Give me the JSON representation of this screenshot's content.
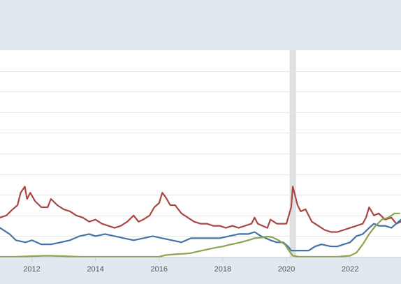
{
  "chart_data": {
    "type": "line",
    "xlim": [
      2011.0,
      2023.6
    ],
    "ylim": [
      0,
      100
    ],
    "grid": true,
    "recession_shading": [
      [
        2020.1,
        2020.3
      ]
    ],
    "x_ticks": [
      {
        "value": 2012,
        "label": "2012"
      },
      {
        "value": 2014,
        "label": "2014"
      },
      {
        "value": 2016,
        "label": "2016"
      },
      {
        "value": 2018,
        "label": "2018"
      },
      {
        "value": 2020,
        "label": "2020"
      },
      {
        "value": 2022,
        "label": "2022"
      }
    ],
    "y_gridlines": [
      0,
      10,
      20,
      30,
      40,
      50,
      60,
      70,
      80,
      90
    ],
    "series": [
      {
        "color": "#aa4643",
        "points": [
          [
            2011.0,
            19
          ],
          [
            2011.2,
            20
          ],
          [
            2011.4,
            23
          ],
          [
            2011.55,
            25
          ],
          [
            2011.65,
            31
          ],
          [
            2011.78,
            34
          ],
          [
            2011.85,
            28
          ],
          [
            2011.95,
            31
          ],
          [
            2012.1,
            27
          ],
          [
            2012.3,
            24
          ],
          [
            2012.5,
            24
          ],
          [
            2012.6,
            28
          ],
          [
            2012.8,
            25
          ],
          [
            2013.0,
            23
          ],
          [
            2013.2,
            22
          ],
          [
            2013.4,
            20
          ],
          [
            2013.6,
            19
          ],
          [
            2013.8,
            17
          ],
          [
            2014.0,
            18
          ],
          [
            2014.2,
            16
          ],
          [
            2014.4,
            15
          ],
          [
            2014.6,
            14
          ],
          [
            2014.8,
            15
          ],
          [
            2015.0,
            17
          ],
          [
            2015.2,
            20
          ],
          [
            2015.35,
            17
          ],
          [
            2015.5,
            18
          ],
          [
            2015.7,
            20
          ],
          [
            2015.85,
            24
          ],
          [
            2016.0,
            26
          ],
          [
            2016.1,
            31
          ],
          [
            2016.2,
            29
          ],
          [
            2016.35,
            25
          ],
          [
            2016.5,
            25
          ],
          [
            2016.7,
            21
          ],
          [
            2016.9,
            19
          ],
          [
            2017.1,
            17
          ],
          [
            2017.3,
            16
          ],
          [
            2017.5,
            16
          ],
          [
            2017.7,
            15
          ],
          [
            2017.9,
            15
          ],
          [
            2018.1,
            14
          ],
          [
            2018.3,
            15
          ],
          [
            2018.5,
            14
          ],
          [
            2018.7,
            15
          ],
          [
            2018.9,
            16
          ],
          [
            2019.0,
            19
          ],
          [
            2019.1,
            16
          ],
          [
            2019.25,
            15
          ],
          [
            2019.4,
            14
          ],
          [
            2019.5,
            18
          ],
          [
            2019.7,
            16
          ],
          [
            2019.9,
            16
          ],
          [
            2020.0,
            16
          ],
          [
            2020.15,
            24
          ],
          [
            2020.2,
            34
          ],
          [
            2020.35,
            25
          ],
          [
            2020.45,
            22
          ],
          [
            2020.6,
            23
          ],
          [
            2020.8,
            17
          ],
          [
            2021.0,
            15
          ],
          [
            2021.2,
            13
          ],
          [
            2021.4,
            12
          ],
          [
            2021.6,
            12
          ],
          [
            2021.8,
            13
          ],
          [
            2022.0,
            14
          ],
          [
            2022.2,
            15
          ],
          [
            2022.4,
            16
          ],
          [
            2022.5,
            19
          ],
          [
            2022.6,
            24
          ],
          [
            2022.75,
            20
          ],
          [
            2022.9,
            21
          ],
          [
            2023.1,
            18
          ],
          [
            2023.3,
            19
          ],
          [
            2023.45,
            16
          ],
          [
            2023.6,
            17
          ]
        ]
      },
      {
        "color": "#4572a7",
        "points": [
          [
            2011.0,
            14
          ],
          [
            2011.3,
            11
          ],
          [
            2011.5,
            8
          ],
          [
            2011.8,
            7
          ],
          [
            2012.0,
            8
          ],
          [
            2012.3,
            6
          ],
          [
            2012.6,
            6
          ],
          [
            2012.9,
            7
          ],
          [
            2013.2,
            8
          ],
          [
            2013.5,
            10
          ],
          [
            2013.8,
            11
          ],
          [
            2014.0,
            10
          ],
          [
            2014.3,
            11
          ],
          [
            2014.6,
            10
          ],
          [
            2014.9,
            9
          ],
          [
            2015.2,
            8
          ],
          [
            2015.5,
            9
          ],
          [
            2015.8,
            10
          ],
          [
            2016.1,
            9
          ],
          [
            2016.4,
            8
          ],
          [
            2016.7,
            7
          ],
          [
            2017.0,
            9
          ],
          [
            2017.3,
            9
          ],
          [
            2017.6,
            9
          ],
          [
            2017.9,
            9
          ],
          [
            2018.2,
            10
          ],
          [
            2018.5,
            11
          ],
          [
            2018.8,
            11
          ],
          [
            2019.0,
            12
          ],
          [
            2019.2,
            10
          ],
          [
            2019.5,
            8
          ],
          [
            2019.7,
            7
          ],
          [
            2019.9,
            7
          ],
          [
            2020.05,
            5
          ],
          [
            2020.15,
            3
          ],
          [
            2020.3,
            3
          ],
          [
            2020.5,
            3
          ],
          [
            2020.7,
            3
          ],
          [
            2020.9,
            5
          ],
          [
            2021.1,
            6
          ],
          [
            2021.4,
            5
          ],
          [
            2021.6,
            5
          ],
          [
            2021.8,
            6
          ],
          [
            2022.0,
            7
          ],
          [
            2022.2,
            10
          ],
          [
            2022.4,
            11
          ],
          [
            2022.6,
            14
          ],
          [
            2022.75,
            16
          ],
          [
            2022.9,
            15
          ],
          [
            2023.1,
            15
          ],
          [
            2023.3,
            14
          ],
          [
            2023.45,
            16
          ],
          [
            2023.6,
            18
          ]
        ]
      },
      {
        "color": "#89a54e",
        "points": [
          [
            2011.0,
            0
          ],
          [
            2011.5,
            0
          ],
          [
            2012.0,
            0.3
          ],
          [
            2012.5,
            0.5
          ],
          [
            2013.0,
            0.3
          ],
          [
            2013.5,
            0
          ],
          [
            2014.0,
            0
          ],
          [
            2014.5,
            0
          ],
          [
            2015.0,
            0
          ],
          [
            2015.5,
            0
          ],
          [
            2016.0,
            0
          ],
          [
            2016.2,
            0.8
          ],
          [
            2016.5,
            1.2
          ],
          [
            2016.8,
            1.5
          ],
          [
            2017.0,
            1.8
          ],
          [
            2017.2,
            2.5
          ],
          [
            2017.5,
            3.5
          ],
          [
            2017.8,
            4.5
          ],
          [
            2018.0,
            5.0
          ],
          [
            2018.2,
            5.8
          ],
          [
            2018.5,
            6.8
          ],
          [
            2018.8,
            8.0
          ],
          [
            2019.0,
            9.0
          ],
          [
            2019.2,
            9.3
          ],
          [
            2019.4,
            9.8
          ],
          [
            2019.55,
            9.5
          ],
          [
            2019.75,
            8.0
          ],
          [
            2019.95,
            6.0
          ],
          [
            2020.1,
            2.5
          ],
          [
            2020.2,
            0.5
          ],
          [
            2020.4,
            0
          ],
          [
            2020.8,
            0
          ],
          [
            2021.2,
            0
          ],
          [
            2021.6,
            0
          ],
          [
            2022.0,
            0.5
          ],
          [
            2022.2,
            2
          ],
          [
            2022.4,
            6
          ],
          [
            2022.6,
            11
          ],
          [
            2022.8,
            15
          ],
          [
            2023.0,
            18
          ],
          [
            2023.2,
            19
          ],
          [
            2023.4,
            21
          ],
          [
            2023.55,
            21
          ]
        ]
      }
    ]
  }
}
